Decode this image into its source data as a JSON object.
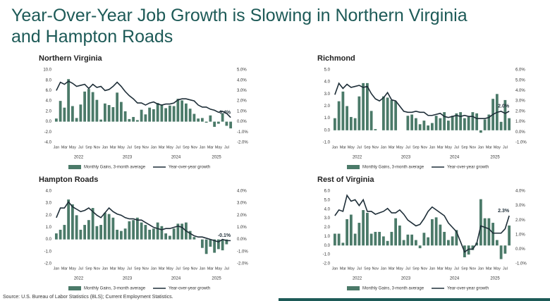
{
  "title_lines": [
    "Year-Over-Year Job Growth is Slowing in Northern Virginia",
    "and Hampton Roads"
  ],
  "source": "Source: U.S. Bureau of Labor Statistics (BLS); Current Employment Statistics.",
  "chart_data": [
    {
      "type": "combo",
      "title": "Northern Virginia",
      "categories": [
        "Jan",
        null,
        "Mar",
        null,
        "May",
        null,
        "Jul",
        null,
        "Sep",
        null,
        "Nov",
        null,
        "Jan",
        null,
        "Mar",
        null,
        "May",
        null,
        "Jul",
        null,
        "Sep",
        null,
        "Nov",
        null,
        "Jan",
        null,
        "Mar",
        null,
        "May",
        null,
        "Jul",
        null,
        "Sep",
        null,
        "Nov",
        null,
        "Jan",
        null,
        "Mar",
        null,
        "May",
        null,
        "Jul",
        null
      ],
      "years": [
        "2022",
        "2023",
        "2024",
        "2025"
      ],
      "series": [
        {
          "name": "Monthly Gains, 3-month average",
          "kind": "bar",
          "color": "#4b7a69",
          "values": [
            0.6,
            4.0,
            2.7,
            8.2,
            3.0,
            0.7,
            3.3,
            5.8,
            6.3,
            5.7,
            4.2,
            0.4,
            3.5,
            3.2,
            2.8,
            5.6,
            3.8,
            2.0,
            0.5,
            0.9,
            0.3,
            2.3,
            1.4,
            2.7,
            2.4,
            3.6,
            3.2,
            2.6,
            3.1,
            3.0,
            4.4,
            4.1,
            3.5,
            2.5,
            1.5,
            0.6,
            0.7,
            -0.2,
            1.2,
            -1.0,
            -0.4,
            1.6,
            -0.8,
            -1.3
          ]
        },
        {
          "name": "Year-over-year growth",
          "kind": "line",
          "axis": "y2",
          "color": "#1e2e38",
          "values": [
            3.0,
            3.8,
            3.6,
            3.9,
            3.7,
            3.4,
            3.5,
            3.6,
            3.2,
            3.6,
            3.3,
            3.4,
            3.0,
            3.1,
            3.4,
            3.8,
            3.4,
            2.9,
            2.5,
            2.2,
            1.8,
            1.8,
            1.6,
            1.8,
            1.9,
            1.7,
            1.6,
            1.7,
            1.7,
            1.8,
            2.1,
            2.2,
            2.2,
            2.1,
            2.0,
            1.6,
            1.4,
            1.4,
            1.2,
            1.1,
            0.9,
            1.0,
            0.8,
            0.4
          ],
          "value_labels": [
            null,
            null,
            null,
            null,
            null,
            null,
            null,
            null,
            null,
            null,
            null,
            null,
            null,
            null,
            null,
            null,
            null,
            null,
            null,
            null,
            null,
            null,
            null,
            null,
            null,
            null,
            null,
            null,
            null,
            null,
            null,
            null,
            null,
            null,
            null,
            null,
            null,
            null,
            null,
            null,
            null,
            null,
            null,
            "0.4%"
          ]
        }
      ],
      "ylim": [
        -4,
        10
      ],
      "yticks": [
        {
          "value": -4,
          "label": "-4.0"
        },
        {
          "value": -2,
          "label": "-2.0"
        },
        {
          "value": 0,
          "label": "0.0"
        },
        {
          "value": 2,
          "label": "2.0"
        },
        {
          "value": 4,
          "label": "4.0"
        },
        {
          "value": 6,
          "label": "6.0"
        },
        {
          "value": 8,
          "label": "8.0"
        },
        {
          "value": 10,
          "label": "10.0"
        }
      ],
      "y2lim": [
        -2,
        5
      ],
      "y2ticks": [
        {
          "value": -2,
          "label": "-2.0%"
        },
        {
          "value": -1,
          "label": "-1.0%"
        },
        {
          "value": 0,
          "label": "0.0%"
        },
        {
          "value": 1,
          "label": "1.0%"
        },
        {
          "value": 2,
          "label": "2.0%"
        },
        {
          "value": 3,
          "label": "3.0%"
        },
        {
          "value": 4,
          "label": "4.0%"
        },
        {
          "value": 5,
          "label": "5.0%"
        }
      ]
    },
    {
      "type": "combo",
      "title": "Richmond",
      "categories": [
        "Jan",
        null,
        "Mar",
        null,
        "May",
        null,
        "Jul",
        null,
        "Sep",
        null,
        "Nov",
        null,
        "Jan",
        null,
        "Mar",
        null,
        "May",
        null,
        "Jul",
        null,
        "Sep",
        null,
        "Nov",
        null,
        "Jan",
        null,
        "Mar",
        null,
        "May",
        null,
        "Jul",
        null,
        "Sep",
        null,
        "Nov",
        null,
        "Jan",
        null,
        "Mar",
        null,
        "May",
        null,
        "Jul",
        null
      ],
      "years": [
        "2022",
        "2023",
        "2024",
        "2025"
      ],
      "series": [
        {
          "name": "Monthly Gains, 3-month average",
          "kind": "bar",
          "color": "#4b7a69",
          "values": [
            1.0,
            2.4,
            3.2,
            2.0,
            1.1,
            1.0,
            2.8,
            3.9,
            3.9,
            1.6,
            0.1,
            0.0,
            2.8,
            2.7,
            2.5,
            2.4,
            0.0,
            0.0,
            1.2,
            1.3,
            1.0,
            0.5,
            0.8,
            0.4,
            0.6,
            1.2,
            1.0,
            1.5,
            0.8,
            1.2,
            1.4,
            1.5,
            1.0,
            1.1,
            1.5,
            1.4,
            -0.2,
            0.9,
            1.3,
            2.6,
            3.0,
            0.7,
            2.5,
            1.0
          ]
        },
        {
          "name": "Year-over-year growth",
          "kind": "line",
          "axis": "y2",
          "color": "#1e2e38",
          "values": [
            3.6,
            4.7,
            4.2,
            4.6,
            4.3,
            4.4,
            4.5,
            4.3,
            4.4,
            3.7,
            3.2,
            3.0,
            3.3,
            3.8,
            3.1,
            3.0,
            2.5,
            2.0,
            1.9,
            1.9,
            2.0,
            1.9,
            1.9,
            1.6,
            1.6,
            1.7,
            1.8,
            1.5,
            1.4,
            1.5,
            1.6,
            1.5,
            1.6,
            1.5,
            1.5,
            1.3,
            1.3,
            1.3,
            1.4,
            1.7,
            1.9,
            2.0,
            1.8,
            2.0
          ],
          "value_labels": [
            null,
            null,
            null,
            null,
            null,
            null,
            null,
            null,
            null,
            null,
            null,
            null,
            null,
            null,
            null,
            null,
            null,
            null,
            null,
            null,
            null,
            null,
            null,
            null,
            null,
            null,
            null,
            null,
            null,
            null,
            null,
            null,
            null,
            null,
            null,
            null,
            null,
            null,
            null,
            null,
            null,
            null,
            null,
            "2.0%"
          ]
        }
      ],
      "ylim": [
        -1,
        5
      ],
      "yticks": [
        {
          "value": -1,
          "label": "-1.0"
        },
        {
          "value": 0,
          "label": "0.0"
        },
        {
          "value": 1,
          "label": "1.0"
        },
        {
          "value": 2,
          "label": "2.0"
        },
        {
          "value": 3,
          "label": "3.0"
        },
        {
          "value": 4,
          "label": "4.0"
        },
        {
          "value": 5,
          "label": "5.0"
        }
      ],
      "y2lim": [
        -1,
        6
      ],
      "y2ticks": [
        {
          "value": -1,
          "label": "-1.0%"
        },
        {
          "value": 0,
          "label": "0.0%"
        },
        {
          "value": 1,
          "label": "1.0%"
        },
        {
          "value": 2,
          "label": "2.0%"
        },
        {
          "value": 3,
          "label": "3.0%"
        },
        {
          "value": 4,
          "label": "4.0%"
        },
        {
          "value": 5,
          "label": "5.0%"
        },
        {
          "value": 6,
          "label": "6.0%"
        }
      ]
    },
    {
      "type": "combo",
      "title": "Hampton Roads",
      "categories": [
        "Jan",
        null,
        "Mar",
        null,
        "May",
        null,
        "Jul",
        null,
        "Sep",
        null,
        "Nov",
        null,
        "Jan",
        null,
        "Mar",
        null,
        "May",
        null,
        "Jul",
        null,
        "Sep",
        null,
        "Nov",
        null,
        "Jan",
        null,
        "Mar",
        null,
        "May",
        null,
        "Jul",
        null,
        "Sep",
        null,
        "Nov",
        null,
        "Jan",
        null,
        "Mar",
        null,
        "May",
        null,
        "Jul",
        null
      ],
      "years": [
        "2022",
        "2023",
        "2024",
        "2025"
      ],
      "series": [
        {
          "name": "Monthly Gains, 3-month average",
          "kind": "bar",
          "color": "#4b7a69",
          "values": [
            0.5,
            0.8,
            1.2,
            3.3,
            2.9,
            2.0,
            0.8,
            1.2,
            1.6,
            2.6,
            1.1,
            1.2,
            2.2,
            2.1,
            1.8,
            0.8,
            0.7,
            0.9,
            1.5,
            1.6,
            1.8,
            1.4,
            1.2,
            0.8,
            0.9,
            1.4,
            1.1,
            0.5,
            0.3,
            0.9,
            1.3,
            1.3,
            1.4,
            0.7,
            0.2,
            0.0,
            -0.7,
            -1.2,
            -0.6,
            -1.1,
            -0.8,
            -0.9,
            -0.4,
            0.0
          ]
        },
        {
          "name": "Year-over-year growth",
          "kind": "line",
          "axis": "y2",
          "color": "#1e2e38",
          "values": [
            1.8,
            2.6,
            2.6,
            3.1,
            2.7,
            2.5,
            2.3,
            2.4,
            2.6,
            2.3,
            2.0,
            1.8,
            2.2,
            2.6,
            2.3,
            2.1,
            2.0,
            1.8,
            1.7,
            1.7,
            1.6,
            1.6,
            1.4,
            1.2,
            1.0,
            0.9,
            0.8,
            0.9,
            0.9,
            1.0,
            1.1,
            1.0,
            0.7,
            0.5,
            0.3,
            0.2,
            0.2,
            0.1,
            0.0,
            -0.1,
            -0.2,
            0.0,
            -0.1,
            -0.1
          ],
          "value_labels": [
            null,
            null,
            null,
            null,
            null,
            null,
            null,
            null,
            null,
            null,
            null,
            null,
            null,
            null,
            null,
            null,
            null,
            null,
            null,
            null,
            null,
            null,
            null,
            null,
            null,
            null,
            null,
            null,
            null,
            null,
            null,
            null,
            null,
            null,
            null,
            null,
            null,
            null,
            null,
            null,
            null,
            null,
            null,
            "-0.1%"
          ]
        }
      ],
      "ylim": [
        -2,
        4
      ],
      "yticks": [
        {
          "value": -2,
          "label": "-2.0"
        },
        {
          "value": -1,
          "label": "-1.0"
        },
        {
          "value": 0,
          "label": "0.0"
        },
        {
          "value": 1,
          "label": "1.0"
        },
        {
          "value": 2,
          "label": "2.0"
        },
        {
          "value": 3,
          "label": "3.0"
        },
        {
          "value": 4,
          "label": "4.0"
        }
      ],
      "y2lim": [
        -2,
        4
      ],
      "y2ticks": [
        {
          "value": -2,
          "label": "-2.0%"
        },
        {
          "value": -1,
          "label": "-1.0%"
        },
        {
          "value": 0,
          "label": "0.0%"
        },
        {
          "value": 1,
          "label": "1.0%"
        },
        {
          "value": 2,
          "label": "2.0%"
        },
        {
          "value": 3,
          "label": "3.0%"
        },
        {
          "value": 4,
          "label": "4.0%"
        }
      ]
    },
    {
      "type": "combo",
      "title": "Rest of Virginia",
      "categories": [
        "Jan",
        null,
        "Mar",
        null,
        "May",
        null,
        "Jul",
        null,
        "Sep",
        null,
        "Nov",
        null,
        "Jan",
        null,
        "Mar",
        null,
        "May",
        null,
        "Jul",
        null,
        "Sep",
        null,
        "Nov",
        null,
        "Jan",
        null,
        "Mar",
        null,
        "May",
        null,
        "Jul",
        null,
        "Sep",
        null,
        "Nov",
        null,
        "Jan",
        null,
        "Mar",
        null,
        "May",
        null,
        "Jul",
        null
      ],
      "years": [
        "2022",
        "2023",
        "2024",
        "2025"
      ],
      "series": [
        {
          "name": "Monthly Gains, 3-month average",
          "kind": "bar",
          "color": "#4b7a69",
          "values": [
            1.3,
            1.3,
            0.3,
            2.9,
            3.4,
            1.3,
            2.5,
            3.9,
            3.6,
            1.3,
            1.5,
            1.5,
            1.0,
            0.5,
            1.5,
            3.0,
            2.2,
            0.6,
            1.2,
            1.2,
            0.6,
            -0.3,
            1.4,
            0.9,
            2.9,
            3.1,
            2.3,
            1.5,
            0.6,
            1.0,
            1.7,
            0.0,
            -1.3,
            -1.0,
            -0.5,
            0.3,
            5.1,
            3.0,
            3.0,
            2.5,
            0.6,
            -1.5,
            -0.9,
            2.2
          ]
        },
        {
          "name": "Year-over-year growth",
          "kind": "line",
          "axis": "y2",
          "color": "#1e2e38",
          "values": [
            2.3,
            2.7,
            2.6,
            3.7,
            3.3,
            3.4,
            3.0,
            3.4,
            2.6,
            2.6,
            2.4,
            2.5,
            2.6,
            2.8,
            2.5,
            2.5,
            2.7,
            2.4,
            2.0,
            1.8,
            1.6,
            1.7,
            2.1,
            2.6,
            2.9,
            2.7,
            2.5,
            2.3,
            1.8,
            1.5,
            1.2,
            0.5,
            -0.2,
            0.0,
            0.0,
            0.4,
            1.6,
            1.5,
            1.4,
            1.1,
            1.1,
            1.1,
            1.4,
            2.3
          ],
          "value_labels": [
            null,
            null,
            null,
            null,
            null,
            null,
            null,
            null,
            null,
            null,
            null,
            null,
            null,
            null,
            null,
            null,
            null,
            null,
            null,
            null,
            null,
            null,
            null,
            null,
            null,
            null,
            null,
            null,
            null,
            null,
            null,
            null,
            null,
            null,
            null,
            null,
            null,
            null,
            null,
            null,
            null,
            null,
            null,
            "2.3%"
          ]
        }
      ],
      "ylim": [
        -2,
        6
      ],
      "yticks": [
        {
          "value": -2,
          "label": "-2.0"
        },
        {
          "value": -1,
          "label": "-1.0"
        },
        {
          "value": 0,
          "label": "0.0"
        },
        {
          "value": 1,
          "label": "1.0"
        },
        {
          "value": 2,
          "label": "2.0"
        },
        {
          "value": 3,
          "label": "3.0"
        },
        {
          "value": 4,
          "label": "4.0"
        },
        {
          "value": 5,
          "label": "5.0"
        },
        {
          "value": 6,
          "label": "6.0"
        }
      ],
      "y2lim": [
        -1,
        4
      ],
      "y2ticks": [
        {
          "value": -1,
          "label": "-1.0%"
        },
        {
          "value": 0,
          "label": "0.0%"
        },
        {
          "value": 1,
          "label": "1.0%"
        },
        {
          "value": 2,
          "label": "2.0%"
        },
        {
          "value": 3,
          "label": "3.0%"
        },
        {
          "value": 4,
          "label": "4.0%"
        }
      ]
    }
  ]
}
